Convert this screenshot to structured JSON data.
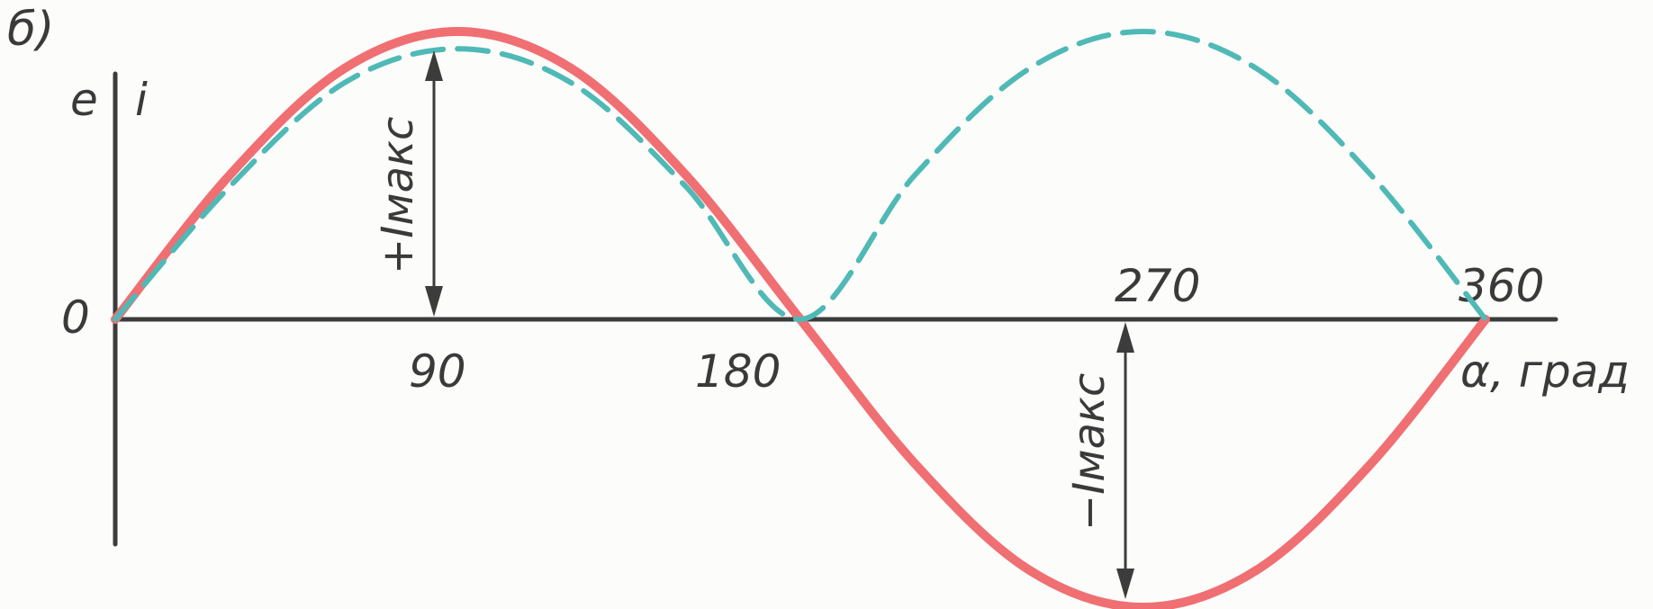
{
  "panel_label": "б)",
  "y_axis_labels": {
    "e": "e",
    "i": "i"
  },
  "origin_label": "0",
  "x_axis_label": "α, град",
  "x_ticks": [
    "90",
    "180",
    "270",
    "360"
  ],
  "annotations": {
    "plus_max": "+Iмакс",
    "minus_max": "−Iмакс"
  },
  "colors": {
    "sine_curve": "#ef6f72",
    "rectified_curve": "#4fb9b6",
    "axes": "#3c3c3c"
  },
  "chart_data": {
    "type": "line",
    "xlabel": "α, град",
    "ylabel": "e  i",
    "xlim": [
      0,
      360
    ],
    "ylim": [
      -1,
      1
    ],
    "series": [
      {
        "style": "solid",
        "color": "#ef6f72",
        "x": [
          0,
          30,
          60,
          90,
          120,
          150,
          180,
          210,
          240,
          270,
          300,
          330,
          360
        ],
        "y": [
          0,
          0.5,
          0.87,
          1,
          0.87,
          0.5,
          0,
          -0.5,
          -0.87,
          -1,
          -0.87,
          -0.5,
          0
        ]
      },
      {
        "style": "dashed",
        "color": "#4fb9b6",
        "x": [
          0,
          30,
          60,
          90,
          120,
          150,
          180,
          210,
          240,
          270,
          300,
          330,
          360
        ],
        "y": [
          0,
          0.46,
          0.82,
          0.94,
          0.82,
          0.46,
          0,
          0.5,
          0.87,
          1,
          0.87,
          0.5,
          0
        ]
      }
    ]
  }
}
